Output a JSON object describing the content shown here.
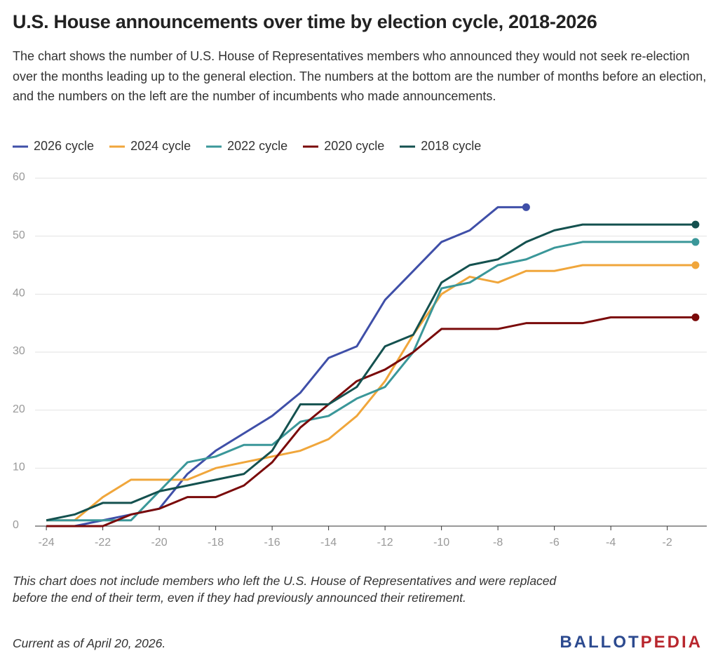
{
  "chart_data": {
    "type": "line",
    "title": "U.S. House announcements over time by election cycle, 2018-2026",
    "subtitle": "The chart shows the number of U.S. House of Representatives members who announced they would not seek re-election over the months leading up to the general election. The numbers at the bottom are the number of months before an election, and the numbers on the left are the number of incumbents who made announcements.",
    "x": [
      -24,
      -23,
      -22,
      -21,
      -20,
      -19,
      -18,
      -17,
      -16,
      -15,
      -14,
      -13,
      -12,
      -11,
      -10,
      -9,
      -8,
      -7,
      -6,
      -5,
      -4,
      -3,
      -2,
      -1
    ],
    "series": [
      {
        "name": "2026 cycle",
        "color": "#3f4fa8",
        "values": [
          0,
          0,
          1,
          2,
          3,
          9,
          13,
          16,
          19,
          23,
          29,
          31,
          39,
          44,
          49,
          51,
          55,
          55,
          null,
          null,
          null,
          null,
          null,
          null
        ]
      },
      {
        "name": "2024 cycle",
        "color": "#f0a63b",
        "values": [
          1,
          1,
          5,
          8,
          8,
          8,
          10,
          11,
          12,
          13,
          15,
          19,
          25,
          33,
          40,
          43,
          42,
          44,
          44,
          45,
          45,
          45,
          45,
          45
        ]
      },
      {
        "name": "2022 cycle",
        "color": "#3a9799",
        "values": [
          1,
          1,
          1,
          1,
          6,
          11,
          12,
          14,
          14,
          18,
          19,
          22,
          24,
          30,
          41,
          42,
          45,
          46,
          48,
          49,
          49,
          49,
          49,
          49
        ]
      },
      {
        "name": "2020 cycle",
        "color": "#7a0a0a",
        "values": [
          0,
          0,
          0,
          2,
          3,
          5,
          5,
          7,
          11,
          17,
          21,
          25,
          27,
          30,
          34,
          34,
          34,
          35,
          35,
          35,
          36,
          36,
          36,
          36
        ]
      },
      {
        "name": "2018 cycle",
        "color": "#14514f",
        "values": [
          1,
          2,
          4,
          4,
          6,
          7,
          8,
          9,
          13,
          21,
          21,
          24,
          31,
          33,
          42,
          45,
          46,
          49,
          51,
          52,
          52,
          52,
          52,
          52
        ]
      }
    ],
    "xlim": [
      -24.4,
      -0.6
    ],
    "ylim": [
      0,
      60
    ],
    "xticks": [
      -24,
      -22,
      -20,
      -18,
      -16,
      -14,
      -12,
      -10,
      -8,
      -6,
      -4,
      -2
    ],
    "yticks": [
      0,
      10,
      20,
      30,
      40,
      50,
      60
    ],
    "grid": true,
    "legend": "top",
    "note": "This chart does not include members who left the U.S. House of Representatives and were replaced before the end of their term, even if they had previously announced their retirement.",
    "footer": "Current as of April 20, 2026.",
    "logo": [
      "BALLOT",
      "PEDIA"
    ]
  }
}
